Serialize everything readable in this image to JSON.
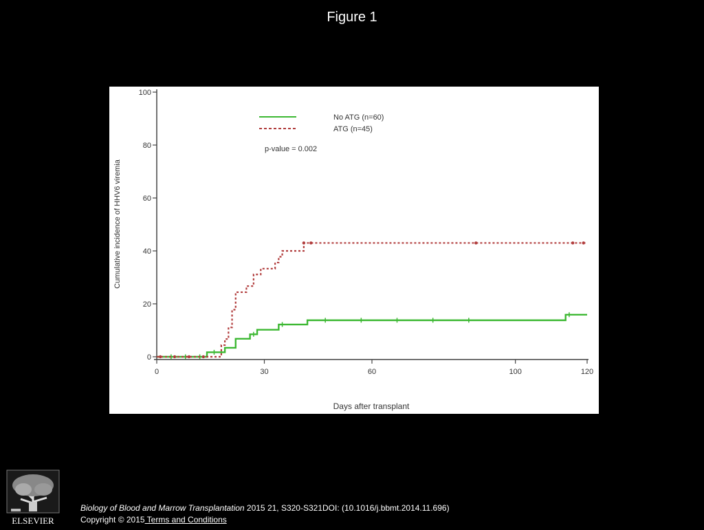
{
  "slide": {
    "title": "Figure 1"
  },
  "citation": {
    "journal": "Biology of Blood and Marrow Transplantation",
    "details": " 2015 21, S320-S321DOI: (10.1016/j.bbmt.2014.11.696)",
    "copyright": "Copyright © 2015",
    "terms_link": " Terms and Conditions"
  },
  "publisher": {
    "logo_text": "ELSEVIER",
    "logo_icon": "elsevier-tree-icon"
  },
  "chart_data": {
    "type": "line",
    "title": "",
    "xlabel": "Days after transplant",
    "ylabel": "Cumulative incidence of HHV6 viremia",
    "xlim": [
      0,
      120
    ],
    "ylim": [
      0,
      100
    ],
    "xticks": [
      0,
      30,
      60,
      100,
      120
    ],
    "yticks": [
      0,
      20,
      40,
      60,
      80,
      100
    ],
    "grid": false,
    "legend_position": "top-center",
    "annotation": "p-value = 0.002",
    "series": [
      {
        "name": "No ATG (n=60)",
        "color": "#3cb832",
        "style": "solid",
        "step": true,
        "x": [
          0,
          14,
          19,
          22,
          26,
          28,
          34,
          42,
          112,
          114,
          120
        ],
        "y": [
          0,
          1.7,
          3.4,
          6.8,
          8.5,
          10.2,
          12.2,
          13.8,
          13.8,
          15.9,
          15.9
        ],
        "censored": [
          [
            4,
            0
          ],
          [
            8,
            0
          ],
          [
            12,
            0
          ],
          [
            16,
            1.7
          ],
          [
            18,
            1.7
          ],
          [
            27,
            8.5
          ],
          [
            35,
            12.2
          ],
          [
            47,
            13.8
          ],
          [
            57,
            13.8
          ],
          [
            67,
            13.8
          ],
          [
            77,
            13.8
          ],
          [
            87,
            13.8
          ],
          [
            115,
            15.9
          ]
        ]
      },
      {
        "name": "ATG (n=45)",
        "color": "#b03a3a",
        "style": "dashed",
        "step": true,
        "x": [
          0,
          18,
          19,
          20,
          21,
          22,
          25,
          27,
          29,
          31,
          33,
          34,
          35,
          36,
          41,
          120
        ],
        "y": [
          0,
          4.4,
          6.7,
          11.1,
          17.8,
          24.4,
          26.7,
          31.1,
          33.3,
          33.3,
          35.6,
          37.8,
          40.0,
          40.0,
          43.0,
          43.0
        ],
        "censored": [
          [
            1,
            0
          ],
          [
            5,
            0
          ],
          [
            9,
            0
          ],
          [
            13,
            0
          ],
          [
            41,
            43.0
          ],
          [
            43,
            43.0
          ],
          [
            89,
            43.0
          ],
          [
            116,
            43.0
          ],
          [
            119,
            43.0
          ]
        ]
      }
    ]
  }
}
